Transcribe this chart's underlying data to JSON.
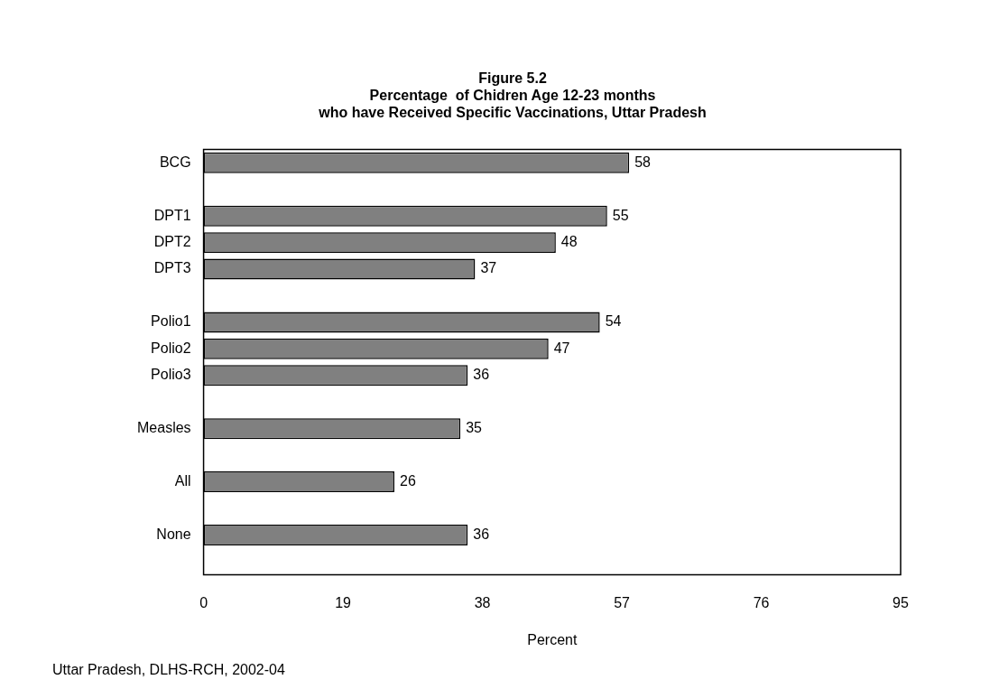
{
  "chart_data": {
    "type": "bar",
    "orientation": "horizontal",
    "title": "Figure 5.2\nPercentage  of Chidren Age 12-23 months\nwho have Received Specific Vaccinations, Uttar Pradesh",
    "xlabel": "Percent",
    "categories": [
      "BCG",
      null,
      "DPT1",
      "DPT2",
      "DPT3",
      null,
      "Polio1",
      "Polio2",
      "Polio3",
      null,
      "Measles",
      null,
      "All",
      null,
      "None",
      null
    ],
    "values": [
      58,
      null,
      55,
      48,
      37,
      null,
      54,
      47,
      36,
      null,
      35,
      null,
      26,
      null,
      36,
      null
    ],
    "color": "#808080",
    "xlim": [
      0,
      95
    ],
    "xticks": [
      0,
      19,
      38,
      57,
      76,
      95
    ],
    "grid": false,
    "legend": false,
    "data_labels": true,
    "annotations": [
      "Uttar Pradesh, DLHS-RCH, 2002-04"
    ]
  }
}
